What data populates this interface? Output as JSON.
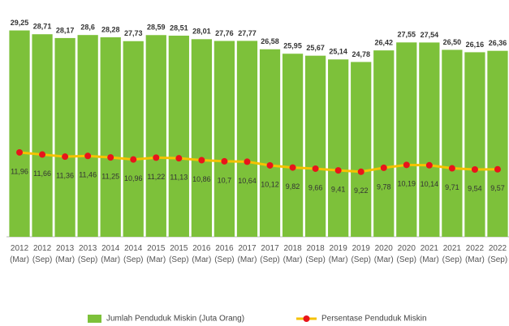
{
  "chart_data": {
    "type": "bar",
    "categories": [
      "2012 (Mar)",
      "2012 (Sep)",
      "2013 (Mar)",
      "2013 (Sep)",
      "2014 (Mar)",
      "2014 (Sep)",
      "2015 (Mar)",
      "2015 (Sep)",
      "2016 (Mar)",
      "2016 (Sep)",
      "2017 (Mar)",
      "2017 (Sep)",
      "2018 (Mar)",
      "2018 (Sep)",
      "2019 (Mar)",
      "2019 (Sep)",
      "2020 (Mar)",
      "2020 (Sep)",
      "2021 (Mar)",
      "2021 (Sep)",
      "2022 (Mar)",
      "2022 (Sep)"
    ],
    "series": [
      {
        "name": "Jumlah Penduduk Miskin (Juta Orang)",
        "type": "bar",
        "color": "#7dc13a",
        "values": [
          29.25,
          28.71,
          28.17,
          28.6,
          28.28,
          27.73,
          28.59,
          28.51,
          28.01,
          27.76,
          27.77,
          26.58,
          25.95,
          25.67,
          25.14,
          24.78,
          26.42,
          27.55,
          27.54,
          26.5,
          26.16,
          26.36
        ],
        "value_labels": [
          "29,25",
          "28,71",
          "28,17",
          "28,6",
          "28,28",
          "27,73",
          "28,59",
          "28,51",
          "28,01",
          "27,76",
          "27,77",
          "26,58",
          "25,95",
          "25,67",
          "25,14",
          "24,78",
          "26,42",
          "27,55",
          "27,54",
          "26,50",
          "26,16",
          "26,36"
        ]
      },
      {
        "name": "Persentase Penduduk Miskin",
        "type": "line",
        "color": "#f5c200",
        "marker_color": "#e8141b",
        "values": [
          11.96,
          11.66,
          11.36,
          11.46,
          11.25,
          10.96,
          11.22,
          11.13,
          10.86,
          10.7,
          10.64,
          10.12,
          9.82,
          9.66,
          9.41,
          9.22,
          9.78,
          10.19,
          10.14,
          9.71,
          9.54,
          9.57
        ],
        "value_labels": [
          "11,96",
          "11,66",
          "11,36",
          "11,46",
          "11,25",
          "10,96",
          "11,22",
          "11,13",
          "10,86",
          "10,7",
          "10,64",
          "10,12",
          "9,82",
          "9,66",
          "9,41",
          "9,22",
          "9,78",
          "10,19",
          "10,14",
          "9,71",
          "9,54",
          "9,57"
        ]
      }
    ],
    "ylim": [
      0,
      30
    ]
  }
}
